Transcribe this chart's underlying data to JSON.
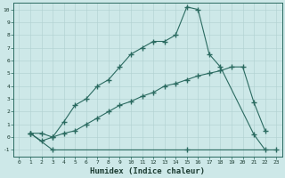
{
  "xlabel": "Humidex (Indice chaleur)",
  "bg_color": "#cde8e8",
  "line_color": "#2a6a60",
  "xlim": [
    -0.5,
    23.5
  ],
  "ylim": [
    -1.5,
    10.5
  ],
  "line1_x": [
    1,
    2,
    3,
    4,
    5,
    6,
    7,
    8,
    9,
    10,
    11,
    12,
    13,
    14,
    15,
    16,
    17,
    18,
    21,
    22
  ],
  "line1_y": [
    0.3,
    -0.3,
    0.0,
    1.2,
    2.5,
    3.0,
    4.0,
    4.5,
    5.5,
    6.5,
    7.0,
    7.5,
    7.5,
    8.0,
    10.2,
    10.0,
    6.5,
    5.5,
    0.2,
    -1.0
  ],
  "line2_x": [
    1,
    2,
    3,
    4,
    5,
    6,
    7,
    8,
    9,
    10,
    11,
    12,
    13,
    14,
    15,
    16,
    17,
    18,
    19,
    20,
    21,
    22
  ],
  "line2_y": [
    0.3,
    0.3,
    0.0,
    0.3,
    0.5,
    1.0,
    1.5,
    2.0,
    2.5,
    2.8,
    3.2,
    3.5,
    4.0,
    4.2,
    4.5,
    4.8,
    5.0,
    5.2,
    5.5,
    5.5,
    2.7,
    0.5
  ],
  "line3_x": [
    1,
    3,
    15,
    23
  ],
  "line3_y": [
    0.3,
    -1.0,
    -1.0,
    -1.0
  ]
}
